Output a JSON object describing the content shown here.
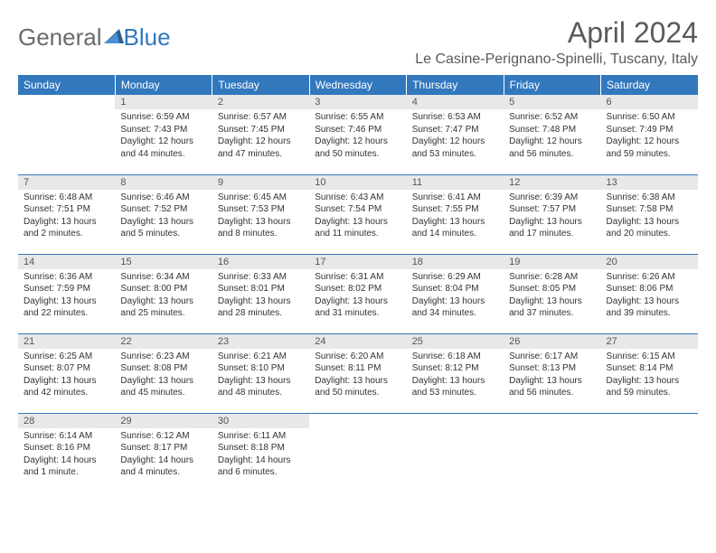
{
  "logo": {
    "text1": "General",
    "text2": "Blue"
  },
  "title": "April 2024",
  "location": "Le Casine-Perignano-Spinelli, Tuscany, Italy",
  "colors": {
    "header_bg": "#3278bd",
    "header_text": "#ffffff",
    "daynum_bg": "#e8e8e8",
    "border": "#3278bd",
    "logo_gray": "#6b6b6b",
    "logo_blue": "#3278bd"
  },
  "weekdays": [
    "Sunday",
    "Monday",
    "Tuesday",
    "Wednesday",
    "Thursday",
    "Friday",
    "Saturday"
  ],
  "weeks": [
    [
      null,
      {
        "n": "1",
        "sr": "6:59 AM",
        "ss": "7:43 PM",
        "dl": "12 hours and 44 minutes."
      },
      {
        "n": "2",
        "sr": "6:57 AM",
        "ss": "7:45 PM",
        "dl": "12 hours and 47 minutes."
      },
      {
        "n": "3",
        "sr": "6:55 AM",
        "ss": "7:46 PM",
        "dl": "12 hours and 50 minutes."
      },
      {
        "n": "4",
        "sr": "6:53 AM",
        "ss": "7:47 PM",
        "dl": "12 hours and 53 minutes."
      },
      {
        "n": "5",
        "sr": "6:52 AM",
        "ss": "7:48 PM",
        "dl": "12 hours and 56 minutes."
      },
      {
        "n": "6",
        "sr": "6:50 AM",
        "ss": "7:49 PM",
        "dl": "12 hours and 59 minutes."
      }
    ],
    [
      {
        "n": "7",
        "sr": "6:48 AM",
        "ss": "7:51 PM",
        "dl": "13 hours and 2 minutes."
      },
      {
        "n": "8",
        "sr": "6:46 AM",
        "ss": "7:52 PM",
        "dl": "13 hours and 5 minutes."
      },
      {
        "n": "9",
        "sr": "6:45 AM",
        "ss": "7:53 PM",
        "dl": "13 hours and 8 minutes."
      },
      {
        "n": "10",
        "sr": "6:43 AM",
        "ss": "7:54 PM",
        "dl": "13 hours and 11 minutes."
      },
      {
        "n": "11",
        "sr": "6:41 AM",
        "ss": "7:55 PM",
        "dl": "13 hours and 14 minutes."
      },
      {
        "n": "12",
        "sr": "6:39 AM",
        "ss": "7:57 PM",
        "dl": "13 hours and 17 minutes."
      },
      {
        "n": "13",
        "sr": "6:38 AM",
        "ss": "7:58 PM",
        "dl": "13 hours and 20 minutes."
      }
    ],
    [
      {
        "n": "14",
        "sr": "6:36 AM",
        "ss": "7:59 PM",
        "dl": "13 hours and 22 minutes."
      },
      {
        "n": "15",
        "sr": "6:34 AM",
        "ss": "8:00 PM",
        "dl": "13 hours and 25 minutes."
      },
      {
        "n": "16",
        "sr": "6:33 AM",
        "ss": "8:01 PM",
        "dl": "13 hours and 28 minutes."
      },
      {
        "n": "17",
        "sr": "6:31 AM",
        "ss": "8:02 PM",
        "dl": "13 hours and 31 minutes."
      },
      {
        "n": "18",
        "sr": "6:29 AM",
        "ss": "8:04 PM",
        "dl": "13 hours and 34 minutes."
      },
      {
        "n": "19",
        "sr": "6:28 AM",
        "ss": "8:05 PM",
        "dl": "13 hours and 37 minutes."
      },
      {
        "n": "20",
        "sr": "6:26 AM",
        "ss": "8:06 PM",
        "dl": "13 hours and 39 minutes."
      }
    ],
    [
      {
        "n": "21",
        "sr": "6:25 AM",
        "ss": "8:07 PM",
        "dl": "13 hours and 42 minutes."
      },
      {
        "n": "22",
        "sr": "6:23 AM",
        "ss": "8:08 PM",
        "dl": "13 hours and 45 minutes."
      },
      {
        "n": "23",
        "sr": "6:21 AM",
        "ss": "8:10 PM",
        "dl": "13 hours and 48 minutes."
      },
      {
        "n": "24",
        "sr": "6:20 AM",
        "ss": "8:11 PM",
        "dl": "13 hours and 50 minutes."
      },
      {
        "n": "25",
        "sr": "6:18 AM",
        "ss": "8:12 PM",
        "dl": "13 hours and 53 minutes."
      },
      {
        "n": "26",
        "sr": "6:17 AM",
        "ss": "8:13 PM",
        "dl": "13 hours and 56 minutes."
      },
      {
        "n": "27",
        "sr": "6:15 AM",
        "ss": "8:14 PM",
        "dl": "13 hours and 59 minutes."
      }
    ],
    [
      {
        "n": "28",
        "sr": "6:14 AM",
        "ss": "8:16 PM",
        "dl": "14 hours and 1 minute."
      },
      {
        "n": "29",
        "sr": "6:12 AM",
        "ss": "8:17 PM",
        "dl": "14 hours and 4 minutes."
      },
      {
        "n": "30",
        "sr": "6:11 AM",
        "ss": "8:18 PM",
        "dl": "14 hours and 6 minutes."
      },
      null,
      null,
      null,
      null
    ]
  ],
  "labels": {
    "sunrise": "Sunrise:",
    "sunset": "Sunset:",
    "daylight": "Daylight:"
  }
}
